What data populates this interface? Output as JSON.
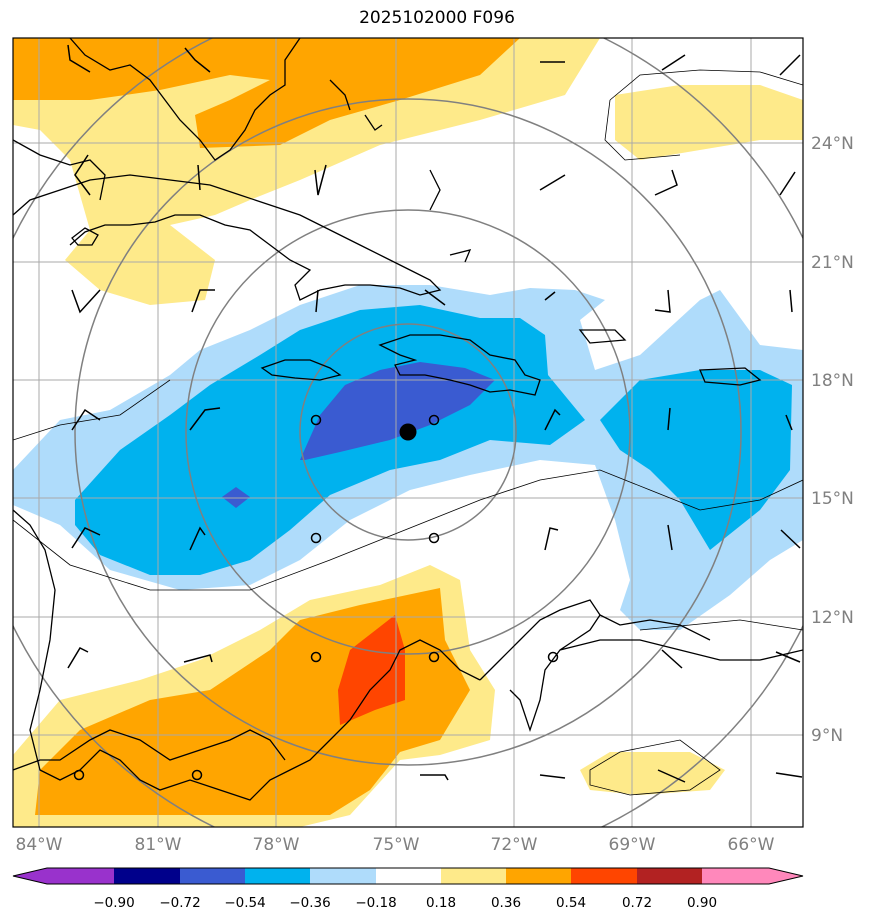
{
  "title": "2025102000 F096",
  "colors": {
    "neg_090": "#9932cc",
    "neg_072": "#00008b",
    "neg_054": "#3a5bd1",
    "neg_036": "#00b2ee",
    "neg_018": "#afdcfb",
    "neutral": "#ffffff",
    "pos_018": "#feea8a",
    "pos_036": "#ffa500",
    "pos_054": "#ff4500",
    "pos_072": "#b22222",
    "pos_090": "#ff88bb",
    "grid": "#a9a9a9",
    "rings": "#808080",
    "coast": "#000000"
  },
  "longitude_labels": [
    "84°W",
    "81°W",
    "78°W",
    "75°W",
    "72°W",
    "69°W",
    "66°W"
  ],
  "latitude_labels": [
    "24°N",
    "21°N",
    "18°N",
    "15°N",
    "12°N",
    "9°N"
  ],
  "colorbar": {
    "labels": [
      "−0.90",
      "−0.72",
      "−0.54",
      "−0.36",
      "−0.18",
      "0.18",
      "0.36",
      "0.54",
      "0.72",
      "0.90"
    ]
  },
  "center_marker": {
    "lon": -74.8,
    "lat": 16.7,
    "icon": "filled-circle"
  },
  "map_extent": {
    "lon": [
      -84.0,
      -64.8
    ],
    "lat": [
      7.0,
      27.0
    ]
  },
  "icons": {
    "calm_wind": "open-circle",
    "wind": "wind-barb"
  }
}
